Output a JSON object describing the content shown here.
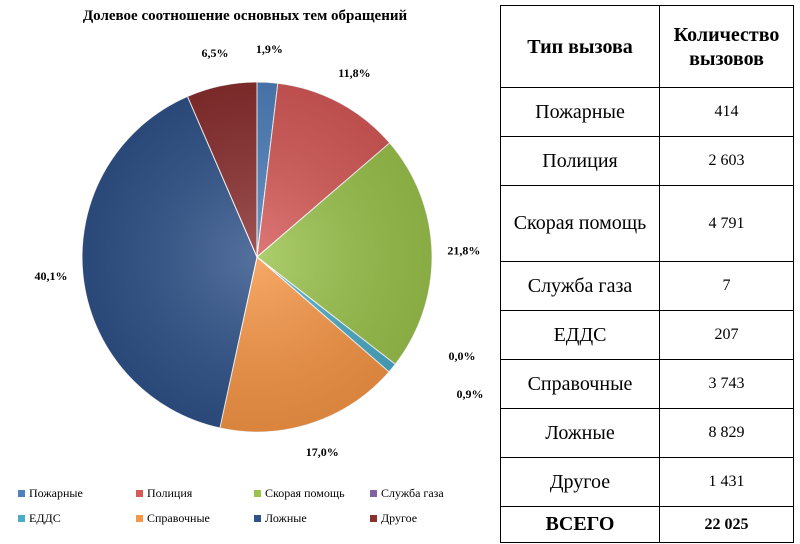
{
  "chart_data": {
    "type": "pie",
    "title": "Долевое соотношение основных тем обращений",
    "slices": [
      {
        "name": "Пожарные",
        "value": 1.9,
        "label": "1,9%",
        "color": "#4f81bd"
      },
      {
        "name": "Полиция",
        "value": 11.8,
        "label": "11,8%",
        "color": "#d65a58"
      },
      {
        "name": "Скорая помощь",
        "value": 21.8,
        "label": "21,8%",
        "color": "#9bc34c"
      },
      {
        "name": "Служба газа",
        "value": 0.0,
        "label": "0,0%",
        "color": "#8064a2"
      },
      {
        "name": "ЕДДС",
        "value": 0.9,
        "label": "0,9%",
        "color": "#4bacc6"
      },
      {
        "name": "Справочные",
        "value": 17.0,
        "label": "17,0%",
        "color": "#f79646"
      },
      {
        "name": "Ложные",
        "value": 40.1,
        "label": "40,1%",
        "color": "#2f5289"
      },
      {
        "name": "Другое",
        "value": 6.5,
        "label": "6,5%",
        "color": "#8b2f2f"
      }
    ],
    "legend_position": "bottom"
  },
  "table": {
    "headers": [
      "Тип вызова",
      "Количество вызовов"
    ],
    "rows": [
      {
        "type": "Пожарные",
        "count": "414"
      },
      {
        "type": "Полиция",
        "count": "2 603"
      },
      {
        "type": "Скорая помощь",
        "count": "4 791"
      },
      {
        "type": "Служба газа",
        "count": "7"
      },
      {
        "type": "ЕДДС",
        "count": "207"
      },
      {
        "type": "Справочные",
        "count": "3 743"
      },
      {
        "type": "Ложные",
        "count": "8 829"
      },
      {
        "type": "Другое",
        "count": "1 431"
      }
    ],
    "total": {
      "type": "ВСЕГО",
      "count": "22 025"
    }
  }
}
